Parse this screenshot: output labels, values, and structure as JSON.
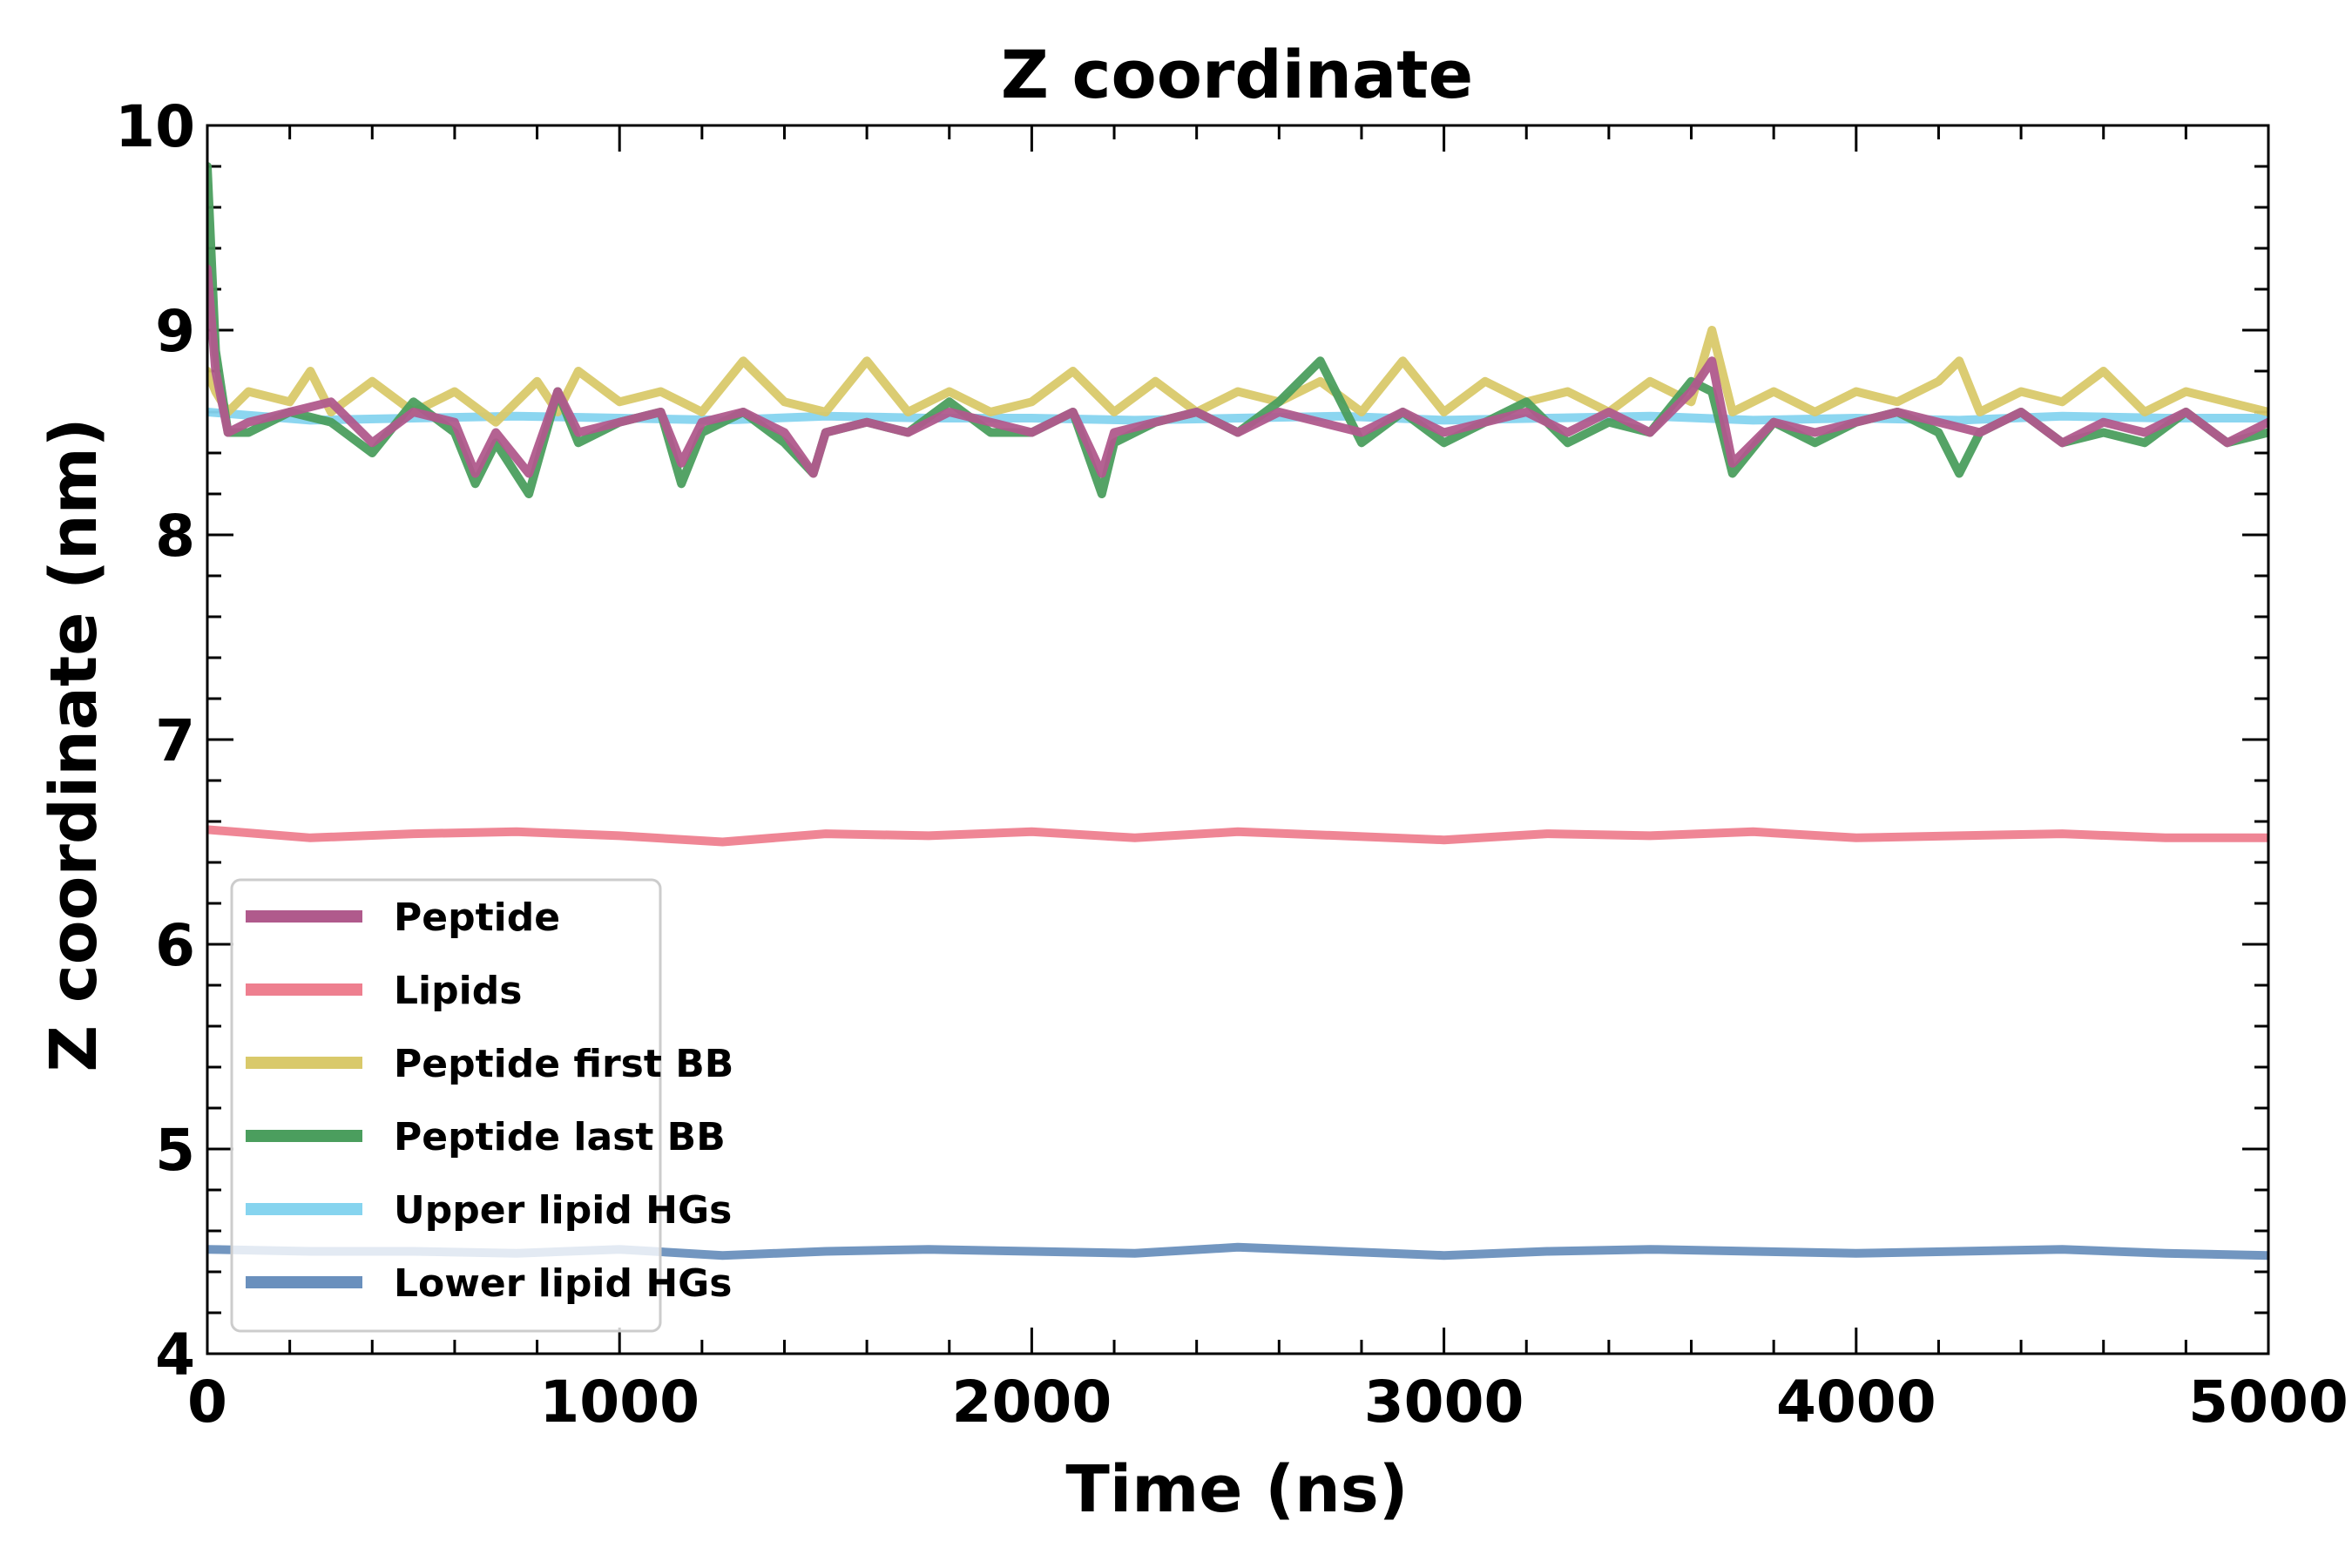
{
  "chart_data": {
    "type": "line",
    "title": "Z coordinate",
    "xlabel": "Time (ns)",
    "ylabel": "Z coordinate (nm)",
    "xlim": [
      0,
      5000
    ],
    "ylim": [
      4,
      10
    ],
    "xticks": [
      0,
      1000,
      2000,
      3000,
      4000,
      5000
    ],
    "xtick_labels": [
      "0",
      "1000",
      "2000",
      "3000",
      "4000",
      "5000"
    ],
    "yticks": [
      4,
      5,
      6,
      7,
      8,
      9,
      10
    ],
    "ytick_labels": [
      "4",
      "5",
      "6",
      "7",
      "8",
      "9",
      "10"
    ],
    "grid": false,
    "legend_position": "lower-left",
    "series": [
      {
        "name": "Peptide",
        "color": "#b05a8c",
        "x": [
          0,
          20,
          50,
          100,
          200,
          300,
          400,
          500,
          600,
          650,
          700,
          780,
          850,
          900,
          1000,
          1100,
          1150,
          1200,
          1300,
          1400,
          1470,
          1500,
          1600,
          1700,
          1800,
          1900,
          2000,
          2100,
          2170,
          2200,
          2300,
          2400,
          2500,
          2600,
          2700,
          2800,
          2900,
          3000,
          3100,
          3200,
          3300,
          3400,
          3500,
          3600,
          3650,
          3700,
          3800,
          3900,
          4000,
          4100,
          4200,
          4300,
          4400,
          4500,
          4600,
          4700,
          4800,
          4900,
          5000
        ],
        "values": [
          9.3,
          8.8,
          8.5,
          8.55,
          8.6,
          8.65,
          8.45,
          8.6,
          8.55,
          8.3,
          8.5,
          8.3,
          8.7,
          8.5,
          8.55,
          8.6,
          8.35,
          8.55,
          8.6,
          8.5,
          8.3,
          8.5,
          8.55,
          8.5,
          8.6,
          8.55,
          8.5,
          8.6,
          8.3,
          8.5,
          8.55,
          8.6,
          8.5,
          8.6,
          8.55,
          8.5,
          8.6,
          8.5,
          8.55,
          8.6,
          8.5,
          8.6,
          8.5,
          8.7,
          8.85,
          8.35,
          8.55,
          8.5,
          8.55,
          8.6,
          8.55,
          8.5,
          8.6,
          8.45,
          8.55,
          8.5,
          8.6,
          8.45,
          8.55
        ]
      },
      {
        "name": "Lipids",
        "color": "#ee7f8f",
        "x": [
          0,
          250,
          500,
          750,
          1000,
          1250,
          1500,
          1750,
          2000,
          2250,
          2500,
          2750,
          3000,
          3250,
          3500,
          3750,
          4000,
          4250,
          4500,
          4750,
          5000
        ],
        "values": [
          6.56,
          6.52,
          6.54,
          6.55,
          6.53,
          6.5,
          6.54,
          6.53,
          6.55,
          6.52,
          6.55,
          6.53,
          6.51,
          6.54,
          6.53,
          6.55,
          6.52,
          6.53,
          6.54,
          6.52,
          6.52
        ]
      },
      {
        "name": "Peptide first BB",
        "color": "#d9c96a",
        "x": [
          0,
          20,
          50,
          100,
          200,
          250,
          300,
          400,
          500,
          600,
          700,
          800,
          850,
          900,
          1000,
          1100,
          1200,
          1300,
          1400,
          1500,
          1600,
          1700,
          1800,
          1900,
          2000,
          2100,
          2200,
          2300,
          2400,
          2500,
          2600,
          2700,
          2800,
          2900,
          3000,
          3100,
          3200,
          3300,
          3400,
          3500,
          3600,
          3650,
          3700,
          3800,
          3900,
          4000,
          4100,
          4200,
          4250,
          4300,
          4400,
          4500,
          4600,
          4700,
          4800,
          4900,
          5000
        ],
        "values": [
          8.8,
          8.7,
          8.6,
          8.7,
          8.65,
          8.8,
          8.6,
          8.75,
          8.6,
          8.7,
          8.55,
          8.75,
          8.6,
          8.8,
          8.65,
          8.7,
          8.6,
          8.85,
          8.65,
          8.6,
          8.85,
          8.6,
          8.7,
          8.6,
          8.65,
          8.8,
          8.6,
          8.75,
          8.6,
          8.7,
          8.65,
          8.75,
          8.6,
          8.85,
          8.6,
          8.75,
          8.65,
          8.7,
          8.6,
          8.75,
          8.65,
          9.0,
          8.6,
          8.7,
          8.6,
          8.7,
          8.65,
          8.75,
          8.85,
          8.6,
          8.7,
          8.65,
          8.8,
          8.6,
          8.7,
          8.65,
          8.6
        ]
      },
      {
        "name": "Peptide last BB",
        "color": "#4b9e5e",
        "x": [
          0,
          20,
          50,
          100,
          200,
          300,
          400,
          500,
          600,
          650,
          700,
          780,
          850,
          900,
          1000,
          1100,
          1150,
          1200,
          1300,
          1400,
          1470,
          1500,
          1600,
          1700,
          1800,
          1900,
          2000,
          2100,
          2170,
          2200,
          2300,
          2400,
          2500,
          2600,
          2700,
          2800,
          2900,
          3000,
          3100,
          3200,
          3300,
          3400,
          3500,
          3600,
          3650,
          3700,
          3800,
          3900,
          4000,
          4100,
          4200,
          4250,
          4300,
          4400,
          4500,
          4600,
          4700,
          4800,
          4900,
          5000
        ],
        "values": [
          9.8,
          8.9,
          8.5,
          8.5,
          8.6,
          8.55,
          8.4,
          8.65,
          8.5,
          8.25,
          8.45,
          8.2,
          8.7,
          8.45,
          8.55,
          8.6,
          8.25,
          8.5,
          8.6,
          8.45,
          8.3,
          8.5,
          8.55,
          8.5,
          8.65,
          8.5,
          8.5,
          8.6,
          8.2,
          8.45,
          8.55,
          8.6,
          8.5,
          8.65,
          8.85,
          8.45,
          8.6,
          8.45,
          8.55,
          8.65,
          8.45,
          8.55,
          8.5,
          8.75,
          8.7,
          8.3,
          8.55,
          8.45,
          8.55,
          8.6,
          8.5,
          8.3,
          8.5,
          8.6,
          8.45,
          8.5,
          8.45,
          8.6,
          8.45,
          8.5
        ]
      },
      {
        "name": "Upper lipid HGs",
        "color": "#86d4ef",
        "x": [
          0,
          250,
          500,
          750,
          1000,
          1250,
          1500,
          1750,
          2000,
          2250,
          2500,
          2750,
          3000,
          3250,
          3500,
          3750,
          4000,
          4250,
          4500,
          4750,
          5000
        ],
        "values": [
          8.6,
          8.56,
          8.57,
          8.58,
          8.57,
          8.56,
          8.58,
          8.57,
          8.57,
          8.56,
          8.57,
          8.58,
          8.56,
          8.57,
          8.58,
          8.56,
          8.57,
          8.56,
          8.58,
          8.57,
          8.57
        ]
      },
      {
        "name": "Lower lipid HGs",
        "color": "#6a90bd",
        "x": [
          0,
          250,
          500,
          750,
          1000,
          1250,
          1500,
          1750,
          2000,
          2250,
          2500,
          2750,
          3000,
          3250,
          3500,
          3750,
          4000,
          4250,
          4500,
          4750,
          5000
        ],
        "values": [
          4.51,
          4.5,
          4.5,
          4.49,
          4.51,
          4.48,
          4.5,
          4.51,
          4.5,
          4.49,
          4.52,
          4.5,
          4.48,
          4.5,
          4.51,
          4.5,
          4.49,
          4.5,
          4.51,
          4.49,
          4.48
        ]
      }
    ]
  }
}
